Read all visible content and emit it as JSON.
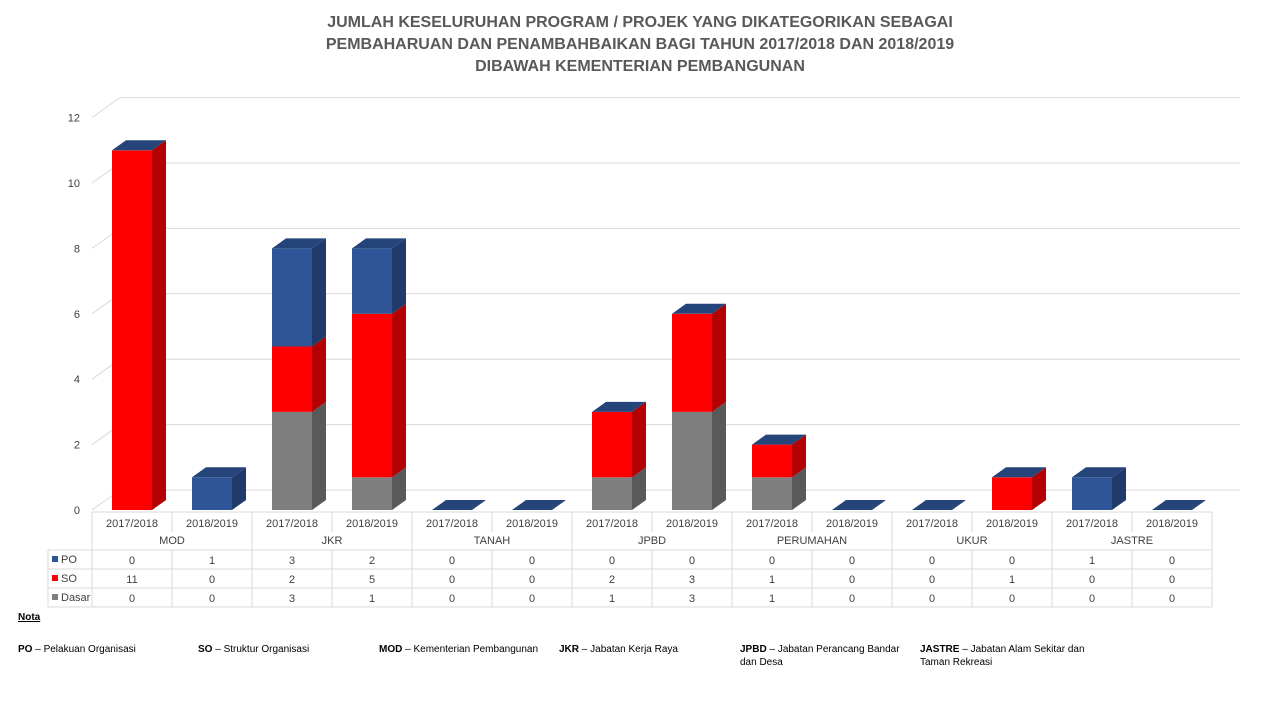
{
  "title_lines": [
    "JUMLAH KESELURUHAN PROGRAM / PROJEK YANG DIKATEGORIKAN SEBAGAI",
    "PEMBAHARUAN DAN PENAMBAHBAIKAN BAGI TAHUN 2017/2018 DAN 2018/2019",
    "DIBAWAH KEMENTERIAN PEMBANGUNAN"
  ],
  "colors": {
    "PO": "#2E5597",
    "SO": "#FF0000",
    "Dasar": "#7F7F7F"
  },
  "chart_data": {
    "type": "bar",
    "stacked": true,
    "three_d": true,
    "ylim": [
      0,
      12
    ],
    "yticks": [
      0,
      2,
      4,
      6,
      8,
      10,
      12
    ],
    "grid": true,
    "groups": [
      "MOD",
      "JKR",
      "TANAH",
      "JPBD",
      "PERUMAHAN",
      "UKUR",
      "JASTRE"
    ],
    "categories": [
      "2017/2018",
      "2018/2019",
      "2017/2018",
      "2018/2019",
      "2017/2018",
      "2018/2019",
      "2017/2018",
      "2018/2019",
      "2017/2018",
      "2018/2019",
      "2017/2018",
      "2018/2019",
      "2017/2018",
      "2018/2019"
    ],
    "series": [
      {
        "name": "PO",
        "values": [
          0,
          1,
          3,
          2,
          0,
          0,
          0,
          0,
          0,
          0,
          0,
          0,
          1,
          0
        ]
      },
      {
        "name": "SO",
        "values": [
          11,
          0,
          2,
          5,
          0,
          0,
          2,
          3,
          1,
          0,
          0,
          1,
          0,
          0
        ]
      },
      {
        "name": "Dasar",
        "values": [
          0,
          0,
          3,
          1,
          0,
          0,
          1,
          3,
          1,
          0,
          0,
          0,
          0,
          0
        ]
      }
    ],
    "data_table": true
  },
  "notes": {
    "heading": "Nota",
    "items": [
      {
        "abbr": "PO",
        "text": "Pelakuan Organisasi"
      },
      {
        "abbr": "SO",
        "text": "Struktur Organisasi"
      },
      {
        "abbr": "MOD",
        "text": "Kementerian Pembangunan"
      },
      {
        "abbr": "JKR",
        "text": "Jabatan Kerja Raya"
      },
      {
        "abbr": "JPBD",
        "text": "Jabatan Perancang Bandar dan Desa"
      },
      {
        "abbr": "JASTRE",
        "text": "Jabatan Alam Sekitar dan Taman Rekreasi"
      }
    ],
    "dash": "–"
  }
}
